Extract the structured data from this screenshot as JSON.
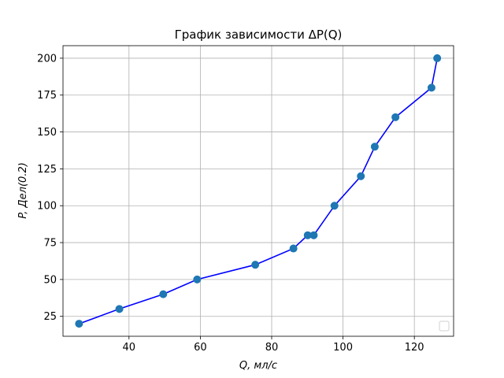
{
  "chart_data": {
    "type": "line",
    "title": "График зависимости ΔP(Q)",
    "xlabel": "Q, мл/с",
    "ylabel": "P, Дел(0.2)",
    "xlim": [
      21.5,
      131
    ],
    "ylim": [
      11.5,
      208.5
    ],
    "xticks": [
      40,
      60,
      80,
      100,
      120
    ],
    "yticks": [
      25,
      50,
      75,
      100,
      125,
      150,
      175,
      200
    ],
    "grid": true,
    "legend": "lower-right",
    "line_color": "#0000ff",
    "marker_color": "#1f77b4",
    "series": [
      {
        "x": [
          26,
          37.3,
          49.6,
          59.1,
          75.4,
          86.1,
          90.1,
          91.8,
          97.6,
          105,
          108.9,
          114.7,
          124.8,
          126.4
        ],
        "y": [
          20,
          30,
          40,
          50,
          60,
          71,
          80,
          80,
          100,
          120,
          140,
          160,
          180,
          200
        ]
      }
    ]
  }
}
